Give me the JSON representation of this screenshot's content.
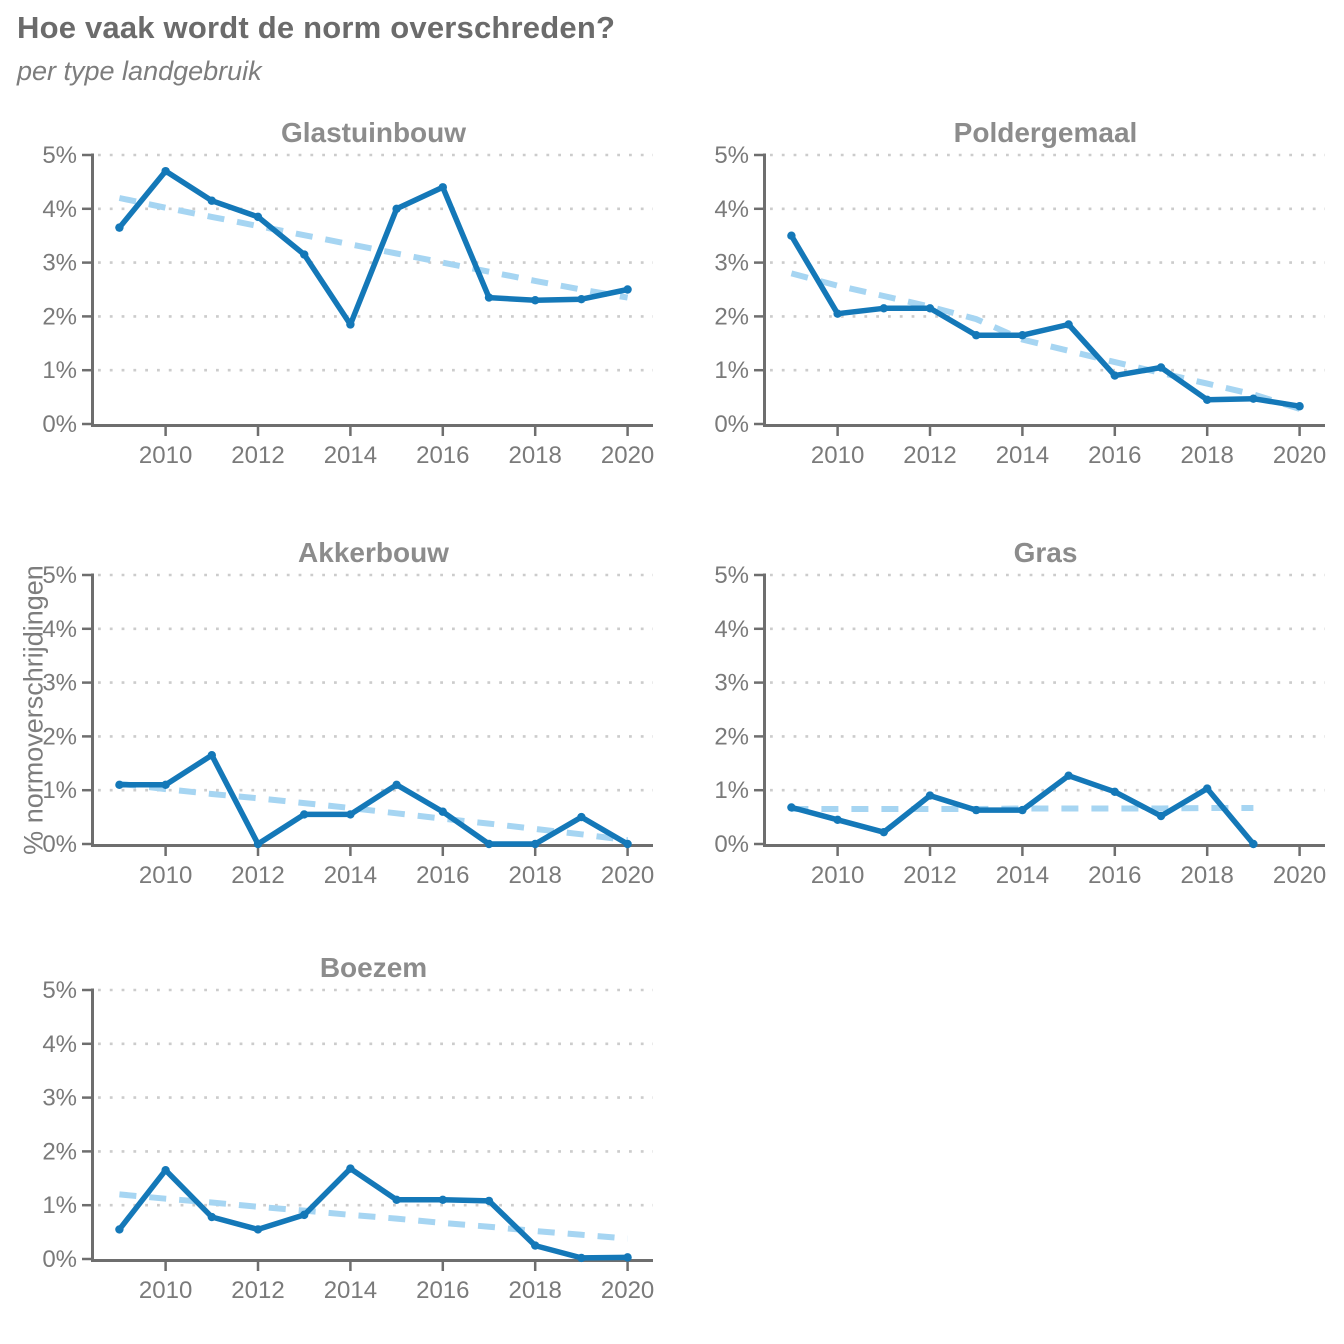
{
  "page": {
    "title": "Hoe vaak wordt de norm overschreden?",
    "subtitle": "per type landgebruik"
  },
  "ylabel": "% normoverschrijdingen",
  "colors": {
    "line": "#1478b8",
    "trend": "#a6d5f2",
    "axis": "#6e6e6e",
    "grid": "#cccccc",
    "tick_text": "#7a7a7a",
    "title_text": "#6b6b6b",
    "subtitle_text": "#7d7d7d",
    "panel_title_text": "#8c8c8c"
  },
  "axes": {
    "x_ticks": [
      2010,
      2012,
      2014,
      2016,
      2018,
      2020
    ],
    "y_ticks": [
      0,
      1,
      2,
      3,
      4,
      5
    ],
    "y_tick_labels": [
      "0%",
      "1%",
      "2%",
      "3%",
      "4%",
      "5%"
    ],
    "xlim": [
      2008.45,
      2020.55
    ],
    "ylim": [
      0,
      5
    ],
    "grid": "dotted-horizontal",
    "legend": "none"
  },
  "chart_data": [
    {
      "type": "line",
      "title": "Glastuinbouw",
      "x": [
        2009,
        2010,
        2011,
        2012,
        2013,
        2014,
        2015,
        2016,
        2017,
        2018,
        2019,
        2020
      ],
      "series": [
        {
          "name": "% normoverschrijdingen",
          "style": "solid",
          "values": [
            3.65,
            4.7,
            4.15,
            3.85,
            3.15,
            1.85,
            4.0,
            4.4,
            2.35,
            2.3,
            2.32,
            2.5
          ]
        },
        {
          "name": "trend",
          "style": "dashed",
          "values": [
            4.2,
            4.02,
            3.85,
            3.68,
            3.51,
            3.34,
            3.17,
            3.0,
            2.83,
            2.66,
            2.5,
            2.35
          ]
        }
      ]
    },
    {
      "type": "line",
      "title": "Poldergemaal",
      "x": [
        2009,
        2010,
        2011,
        2012,
        2013,
        2014,
        2015,
        2016,
        2017,
        2018,
        2019,
        2020
      ],
      "series": [
        {
          "name": "% normoverschrijdingen",
          "style": "solid",
          "values": [
            3.5,
            2.05,
            2.15,
            2.15,
            1.65,
            1.65,
            1.85,
            0.9,
            1.05,
            0.45,
            0.47,
            0.33
          ]
        },
        {
          "name": "trend",
          "style": "dashed",
          "values": [
            2.8,
            2.57,
            2.38,
            2.18,
            1.95,
            1.57,
            1.36,
            1.15,
            0.95,
            0.75,
            0.55,
            0.28
          ]
        }
      ]
    },
    {
      "type": "line",
      "title": "Akkerbouw",
      "x": [
        2009,
        2010,
        2011,
        2012,
        2013,
        2014,
        2015,
        2016,
        2017,
        2018,
        2019,
        2020
      ],
      "series": [
        {
          "name": "% normoverschrijdingen",
          "style": "solid",
          "values": [
            1.1,
            1.1,
            1.65,
            0.0,
            0.55,
            0.55,
            1.1,
            0.6,
            0.0,
            0.0,
            0.5,
            0.0
          ]
        },
        {
          "name": "trend",
          "style": "dashed",
          "values": [
            1.12,
            1.02,
            0.93,
            0.85,
            0.76,
            0.67,
            0.57,
            0.47,
            0.38,
            0.28,
            0.18,
            0.07
          ]
        }
      ]
    },
    {
      "type": "line",
      "title": "Gras",
      "x": [
        2009,
        2010,
        2011,
        2012,
        2013,
        2014,
        2015,
        2016,
        2017,
        2018,
        2019,
        2020
      ],
      "series": [
        {
          "name": "% normoverschrijdingen",
          "style": "solid",
          "values": [
            0.68,
            0.45,
            0.22,
            0.9,
            0.63,
            0.63,
            1.27,
            0.97,
            0.52,
            1.03,
            0.0,
            null
          ]
        },
        {
          "name": "trend",
          "style": "dashed",
          "values": [
            0.65,
            0.65,
            0.65,
            0.65,
            0.65,
            0.66,
            0.66,
            0.66,
            0.66,
            0.67,
            0.67,
            null
          ]
        }
      ]
    },
    {
      "type": "line",
      "title": "Boezem",
      "x": [
        2009,
        2010,
        2011,
        2012,
        2013,
        2014,
        2015,
        2016,
        2017,
        2018,
        2019,
        2020
      ],
      "series": [
        {
          "name": "% normoverschrijdingen",
          "style": "solid",
          "values": [
            0.55,
            1.65,
            0.78,
            0.55,
            0.82,
            1.68,
            1.1,
            1.1,
            1.08,
            0.25,
            0.02,
            0.03
          ]
        },
        {
          "name": "trend",
          "style": "dashed",
          "values": [
            1.2,
            1.12,
            1.05,
            0.97,
            0.9,
            0.82,
            0.75,
            0.67,
            0.6,
            0.52,
            0.45,
            0.38
          ]
        }
      ]
    }
  ]
}
